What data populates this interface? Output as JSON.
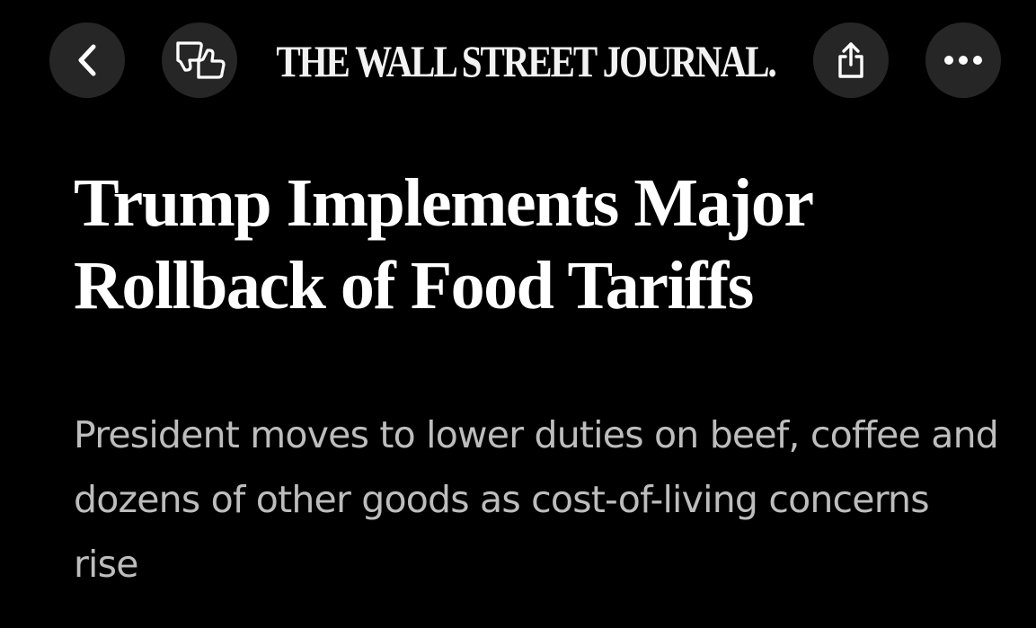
{
  "header": {
    "masthead": "THE WALL STREET JOURNAL.",
    "buttons": {
      "back_icon": "chevron-left-icon",
      "feedback_icon": "thumbs-up-down-icon",
      "share_icon": "share-icon",
      "more_icon": "more-horizontal-icon"
    }
  },
  "article": {
    "headline": "Trump Implements Major Rollback of Food Tariffs",
    "dek": "President moves to lower duties on beef, coffee and dozens of other goods as cost-of-living concerns rise"
  },
  "colors": {
    "background": "#000000",
    "button_background": "#262626",
    "headline": "#ffffff",
    "dek": "#bdbdbd"
  }
}
